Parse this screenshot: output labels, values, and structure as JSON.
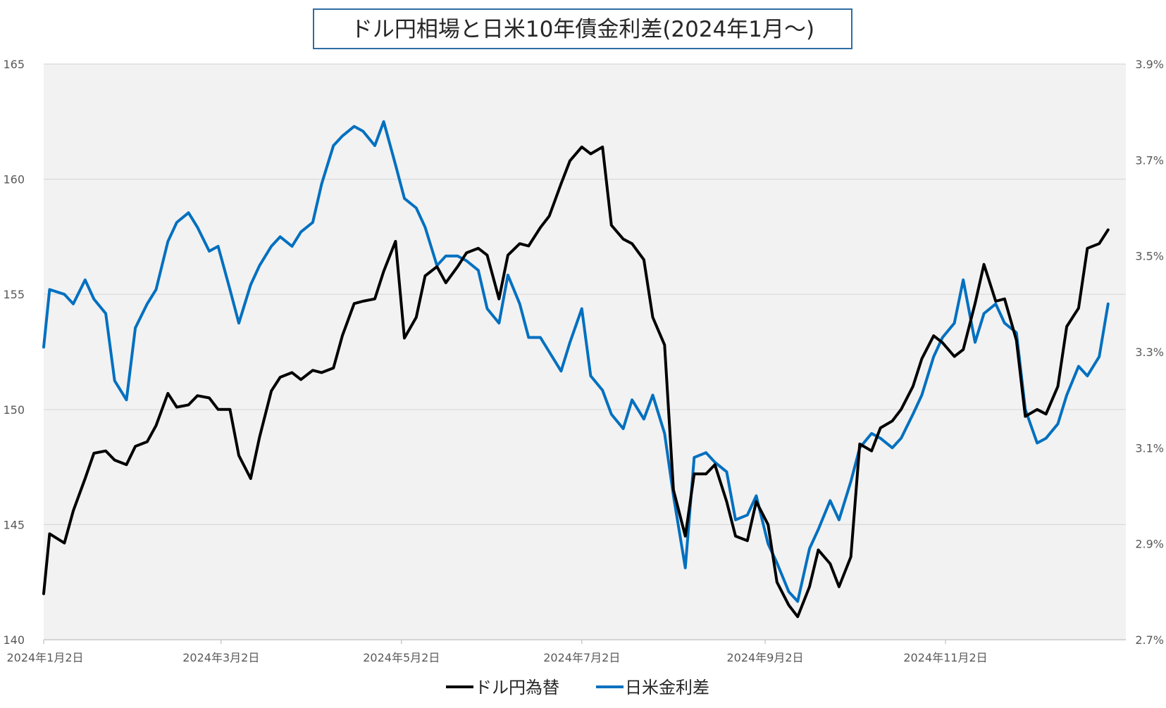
{
  "chart_data": {
    "type": "line",
    "title": "ドル円相場と日米10年債金利差(2024年1月～)",
    "x": [
      "2024-01-02",
      "2024-01-04",
      "2024-01-09",
      "2024-01-12",
      "2024-01-16",
      "2024-01-19",
      "2024-01-23",
      "2024-01-26",
      "2024-01-30",
      "2024-02-02",
      "2024-02-06",
      "2024-02-09",
      "2024-02-13",
      "2024-02-16",
      "2024-02-20",
      "2024-02-23",
      "2024-02-27",
      "2024-03-01",
      "2024-03-05",
      "2024-03-08",
      "2024-03-12",
      "2024-03-15",
      "2024-03-19",
      "2024-03-22",
      "2024-03-26",
      "2024-03-29",
      "2024-04-02",
      "2024-04-05",
      "2024-04-09",
      "2024-04-12",
      "2024-04-16",
      "2024-04-19",
      "2024-04-23",
      "2024-04-26",
      "2024-04-30",
      "2024-05-03",
      "2024-05-07",
      "2024-05-10",
      "2024-05-14",
      "2024-05-17",
      "2024-05-21",
      "2024-05-24",
      "2024-05-28",
      "2024-05-31",
      "2024-06-04",
      "2024-06-07",
      "2024-06-11",
      "2024-06-14",
      "2024-06-18",
      "2024-06-21",
      "2024-06-25",
      "2024-06-28",
      "2024-07-02",
      "2024-07-05",
      "2024-07-09",
      "2024-07-12",
      "2024-07-16",
      "2024-07-19",
      "2024-07-23",
      "2024-07-26",
      "2024-07-30",
      "2024-08-02",
      "2024-08-06",
      "2024-08-09",
      "2024-08-13",
      "2024-08-16",
      "2024-08-20",
      "2024-08-23",
      "2024-08-27",
      "2024-08-30",
      "2024-09-03",
      "2024-09-06",
      "2024-09-10",
      "2024-09-13",
      "2024-09-17",
      "2024-09-20",
      "2024-09-24",
      "2024-09-27",
      "2024-10-01",
      "2024-10-04",
      "2024-10-08",
      "2024-10-11",
      "2024-10-15",
      "2024-10-18",
      "2024-10-22",
      "2024-10-25",
      "2024-10-29",
      "2024-11-01",
      "2024-11-05",
      "2024-11-08",
      "2024-11-12",
      "2024-11-15",
      "2024-11-19",
      "2024-11-22",
      "2024-11-26",
      "2024-11-29",
      "2024-12-03",
      "2024-12-06",
      "2024-12-10",
      "2024-12-13",
      "2024-12-17",
      "2024-12-20",
      "2024-12-24",
      "2024-12-27"
    ],
    "series": [
      {
        "name": "ドル円為替",
        "axis": "left",
        "color": "#000000",
        "values": [
          142.0,
          144.6,
          144.2,
          145.6,
          147.0,
          148.1,
          148.2,
          147.8,
          147.6,
          148.4,
          148.6,
          149.3,
          150.7,
          150.1,
          150.2,
          150.6,
          150.5,
          150.0,
          150.0,
          148.0,
          147.0,
          148.8,
          150.8,
          151.4,
          151.6,
          151.3,
          151.7,
          151.6,
          151.8,
          153.2,
          154.6,
          154.7,
          154.8,
          156.0,
          157.3,
          153.1,
          154.0,
          155.8,
          156.2,
          155.5,
          156.2,
          156.8,
          157.0,
          156.7,
          154.8,
          156.7,
          157.2,
          157.1,
          157.9,
          158.4,
          159.8,
          160.8,
          161.4,
          161.1,
          161.4,
          158.0,
          157.4,
          157.2,
          156.5,
          154.0,
          152.8,
          146.5,
          144.5,
          147.2,
          147.2,
          147.6,
          146.0,
          144.5,
          144.3,
          146.0,
          145.0,
          142.5,
          141.5,
          141.0,
          142.3,
          143.9,
          143.3,
          142.3,
          143.6,
          148.5,
          148.2,
          149.2,
          149.5,
          150.0,
          151.0,
          152.2,
          153.2,
          152.9,
          152.3,
          152.6,
          154.6,
          156.3,
          154.7,
          154.8,
          153.0,
          149.7,
          150.0,
          149.8,
          151.0,
          153.6,
          154.4,
          157.0,
          157.2,
          157.8
        ]
      },
      {
        "name": "日米金利差",
        "axis": "right",
        "color": "#0070C0",
        "values": [
          3.31,
          3.43,
          3.42,
          3.4,
          3.45,
          3.41,
          3.38,
          3.24,
          3.2,
          3.35,
          3.4,
          3.43,
          3.53,
          3.57,
          3.59,
          3.56,
          3.51,
          3.52,
          3.43,
          3.36,
          3.44,
          3.48,
          3.52,
          3.54,
          3.52,
          3.55,
          3.57,
          3.65,
          3.73,
          3.75,
          3.77,
          3.76,
          3.73,
          3.78,
          3.69,
          3.62,
          3.6,
          3.56,
          3.48,
          3.5,
          3.5,
          3.49,
          3.47,
          3.39,
          3.36,
          3.46,
          3.4,
          3.33,
          3.33,
          3.3,
          3.26,
          3.32,
          3.39,
          3.25,
          3.22,
          3.17,
          3.14,
          3.2,
          3.16,
          3.21,
          3.13,
          3.0,
          2.85,
          3.08,
          3.09,
          3.07,
          3.05,
          2.95,
          2.96,
          3.0,
          2.9,
          2.86,
          2.8,
          2.78,
          2.89,
          2.93,
          2.99,
          2.95,
          3.03,
          3.1,
          3.13,
          3.12,
          3.1,
          3.12,
          3.17,
          3.21,
          3.29,
          3.33,
          3.36,
          3.45,
          3.32,
          3.38,
          3.4,
          3.36,
          3.34,
          3.18,
          3.11,
          3.12,
          3.15,
          3.21,
          3.27,
          3.25,
          3.29,
          3.4
        ]
      }
    ],
    "y_left": {
      "min": 140,
      "max": 165,
      "ticks": [
        "140",
        "145",
        "150",
        "155",
        "160",
        "165"
      ]
    },
    "y_right": {
      "min": 2.7,
      "max": 3.9,
      "ticks": [
        "2.7%",
        "2.9%",
        "3.1%",
        "3.3%",
        "3.5%",
        "3.7%",
        "3.9%"
      ]
    },
    "x_ticks": [
      {
        "date": "2024-01-02",
        "label": "2024年1月2日"
      },
      {
        "date": "2024-03-02",
        "label": "2024年3月2日"
      },
      {
        "date": "2024-05-02",
        "label": "2024年5月2日"
      },
      {
        "date": "2024-07-02",
        "label": "2024年7月2日"
      },
      {
        "date": "2024-09-02",
        "label": "2024年9月2日"
      },
      {
        "date": "2024-11-02",
        "label": "2024年11月2日"
      }
    ],
    "x_end": "2025-01-02",
    "grid": true,
    "legend_position": "bottom"
  }
}
